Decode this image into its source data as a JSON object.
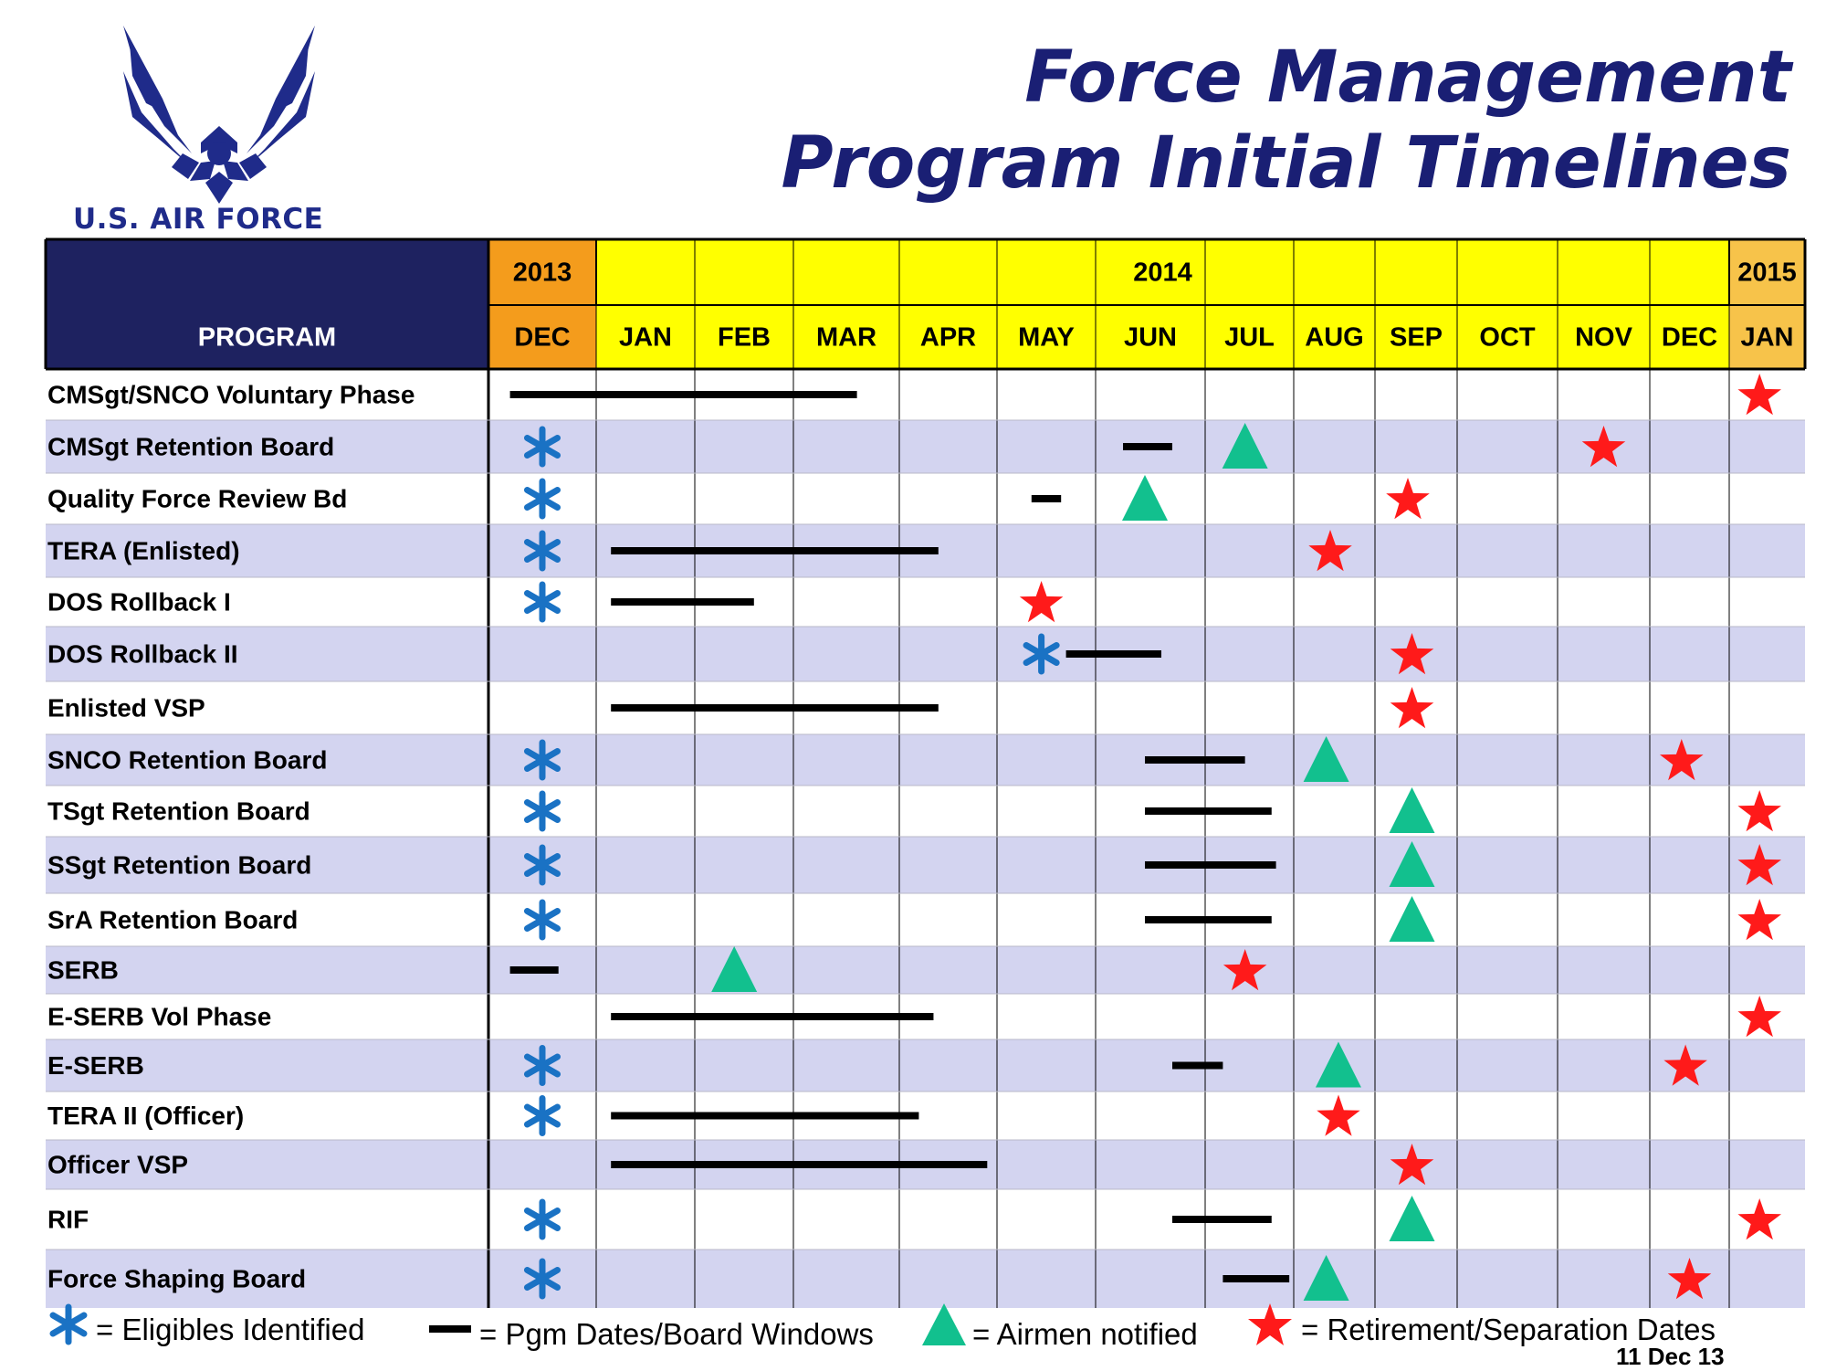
{
  "header": {
    "title_line1": "Force Management",
    "title_line2": "Program Initial Timelines",
    "brand_text": "U.S. AIR FORCE",
    "logo_icon": "air-force-symbol-icon"
  },
  "colors": {
    "navy": "#1e2260",
    "year2013": "#f49c1c",
    "year2014": "#ffff00",
    "year2015": "#f7c34a",
    "row_alt": "#d3d4f0",
    "asterisk": "#1a72c4",
    "triangle": "#12c08e",
    "star": "#ff1a1a"
  },
  "legend": {
    "eligibles": "= Eligibles Identified",
    "windows": "= Pgm Dates/Board Windows",
    "notified": "= Airmen notified",
    "separation": "= Retirement/Separation Dates",
    "date": "11 Dec 13"
  },
  "chart_data": {
    "type": "table",
    "program_header": "PROGRAM",
    "years": [
      {
        "label": "2013",
        "months": 1
      },
      {
        "label": "2014",
        "months": 12
      },
      {
        "label": "2015",
        "months": 1
      }
    ],
    "months": [
      "DEC",
      "JAN",
      "FEB",
      "MAR",
      "APR",
      "MAY",
      "JUN",
      "JUL",
      "AUG",
      "SEP",
      "OCT",
      "NOV",
      "DEC",
      "JAN"
    ],
    "markers_legend": {
      "asterisk": "Eligibles Identified",
      "bar": "Pgm Dates/Board Windows",
      "triangle": "Airmen notified",
      "star": "Retirement/Separation Dates"
    },
    "note": "month index 0 = DEC 2013 ... 13 = JAN 2015; positions are fractional month indices",
    "rows": [
      {
        "program": "CMSgt/SNCO Voluntary Phase",
        "bars": [
          [
            0.2,
            3.6
          ]
        ],
        "stars": [
          13.4
        ]
      },
      {
        "program": "CMSgt Retention Board",
        "asterisks": [
          0.5
        ],
        "bars": [
          [
            6.25,
            6.7
          ]
        ],
        "triangles": [
          7.45
        ],
        "stars": [
          11.5
        ]
      },
      {
        "program": "Quality Force Review Bd",
        "asterisks": [
          0.5
        ],
        "bars": [
          [
            5.35,
            5.65
          ]
        ],
        "triangles": [
          6.45
        ],
        "stars": [
          9.4
        ]
      },
      {
        "program": "TERA  (Enlisted)",
        "asterisks": [
          0.5
        ],
        "bars": [
          [
            1.15,
            4.4
          ]
        ],
        "stars": [
          8.45
        ]
      },
      {
        "program": "DOS Rollback I",
        "asterisks": [
          0.5
        ],
        "bars": [
          [
            1.15,
            2.6
          ]
        ],
        "stars": [
          5.45
        ]
      },
      {
        "program": "DOS Rollback II",
        "asterisks": [
          5.45
        ],
        "bars": [
          [
            5.7,
            6.6
          ]
        ],
        "stars": [
          9.45
        ]
      },
      {
        "program": "Enlisted VSP",
        "bars": [
          [
            1.15,
            4.4
          ]
        ],
        "stars": [
          9.45
        ]
      },
      {
        "program": "SNCO Retention Board",
        "asterisks": [
          0.5
        ],
        "bars": [
          [
            6.45,
            7.45
          ]
        ],
        "triangles": [
          8.4
        ],
        "stars": [
          12.4
        ]
      },
      {
        "program": "TSgt Retention Board",
        "asterisks": [
          0.5
        ],
        "bars": [
          [
            6.45,
            7.75
          ]
        ],
        "triangles": [
          9.45
        ],
        "stars": [
          13.4
        ]
      },
      {
        "program": "SSgt Retention Board",
        "asterisks": [
          0.5
        ],
        "bars": [
          [
            6.45,
            7.8
          ]
        ],
        "triangles": [
          9.45
        ],
        "stars": [
          13.4
        ]
      },
      {
        "program": "SrA Retention Board",
        "asterisks": [
          0.5
        ],
        "bars": [
          [
            6.45,
            7.75
          ]
        ],
        "triangles": [
          9.45
        ],
        "stars": [
          13.4
        ]
      },
      {
        "program": "SERB",
        "bars": [
          [
            0.2,
            0.65
          ]
        ],
        "triangles": [
          2.4
        ],
        "stars": [
          7.45
        ]
      },
      {
        "program": "E-SERB Vol Phase",
        "bars": [
          [
            1.15,
            4.35
          ]
        ],
        "stars": [
          13.4
        ]
      },
      {
        "program": "E-SERB",
        "asterisks": [
          0.5
        ],
        "bars": [
          [
            6.7,
            7.2
          ]
        ],
        "triangles": [
          8.55
        ],
        "stars": [
          12.45
        ]
      },
      {
        "program": "TERA II (Officer)",
        "asterisks": [
          0.5
        ],
        "bars": [
          [
            1.15,
            4.2
          ]
        ],
        "stars": [
          8.55
        ]
      },
      {
        "program": "Officer VSP",
        "bars": [
          [
            1.15,
            4.9
          ]
        ],
        "stars": [
          9.45
        ]
      },
      {
        "program": "RIF",
        "asterisks": [
          0.5
        ],
        "bars": [
          [
            6.7,
            7.75
          ]
        ],
        "triangles": [
          9.45
        ],
        "stars": [
          13.4
        ]
      },
      {
        "program": "Force Shaping Board",
        "asterisks": [
          0.5
        ],
        "bars": [
          [
            7.2,
            7.95
          ]
        ],
        "triangles": [
          8.4
        ],
        "stars": [
          12.5
        ]
      }
    ]
  }
}
